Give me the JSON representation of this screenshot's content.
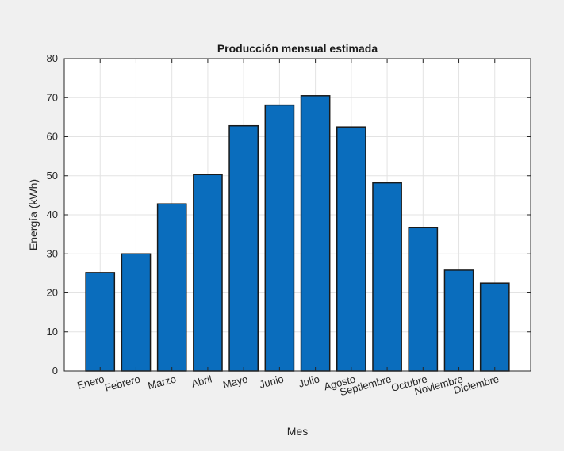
{
  "figure": {
    "background": "#f0f0f0"
  },
  "chart_data": {
    "type": "bar",
    "title": "Producción mensual estimada",
    "xlabel": "Mes",
    "ylabel": "Energía (kWh)",
    "categories": [
      "Enero",
      "Febrero",
      "Marzo",
      "Abril",
      "Mayo",
      "Junio",
      "Julio",
      "Agosto",
      "Septiembre",
      "Octubre",
      "Noviembre",
      "Diciembre"
    ],
    "values": [
      25.2,
      30.0,
      42.8,
      50.3,
      62.8,
      68.1,
      70.5,
      62.5,
      48.2,
      36.7,
      25.8,
      22.5
    ],
    "ylim": [
      0,
      80
    ],
    "yticks": [
      0,
      10,
      20,
      30,
      40,
      50,
      60,
      70,
      80
    ],
    "grid": true,
    "legend": "none",
    "colors": {
      "bar_fill": "#0a6dbd",
      "bar_edge": "#1a1a1a",
      "axes_bg": "#ffffff",
      "grid": "#e3e3e3",
      "axis": "#262626"
    }
  }
}
